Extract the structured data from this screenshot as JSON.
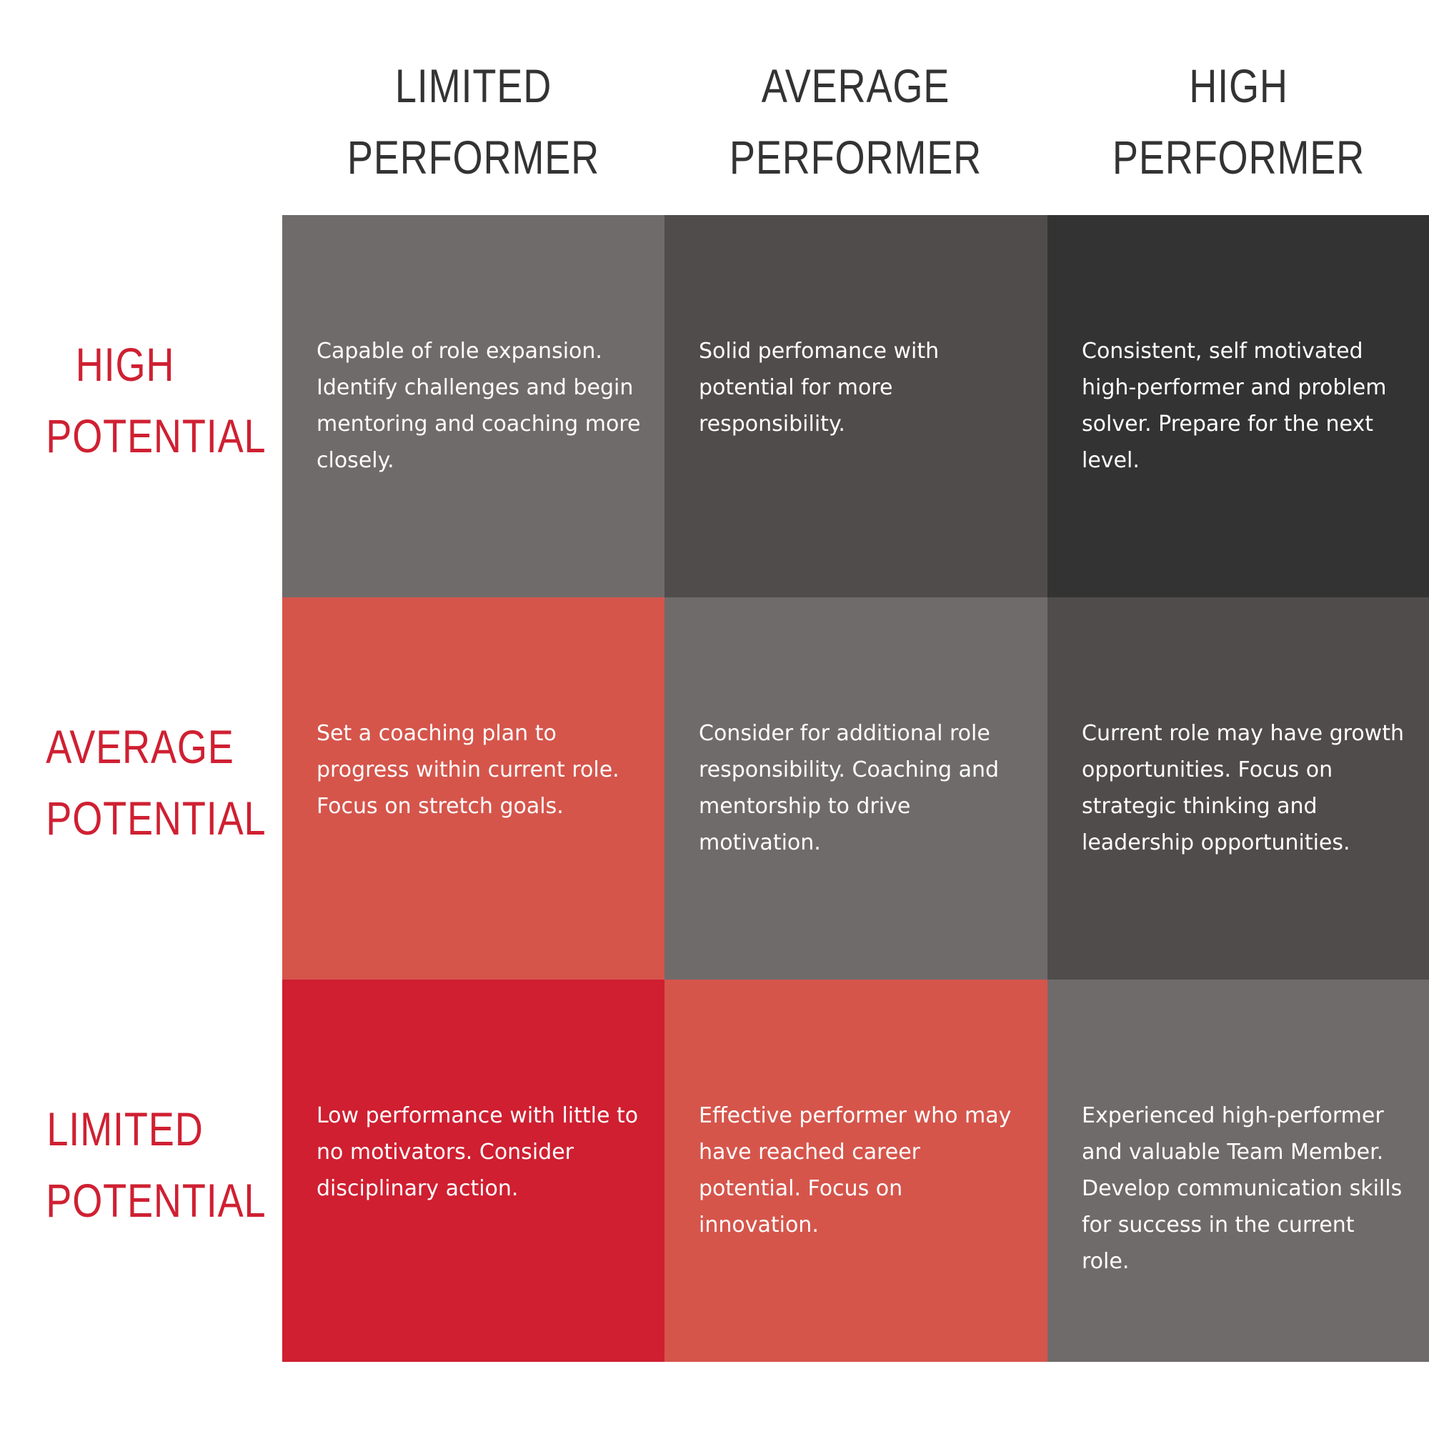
{
  "columns": [
    {
      "line1": "LIMITED",
      "line2": "PERFORMER"
    },
    {
      "line1": "AVERAGE",
      "line2": "PERFORMER"
    },
    {
      "line1": "HIGH",
      "line2": "PERFORMER"
    }
  ],
  "rows": [
    {
      "line1": "HIGH",
      "line2": "POTENTIAL"
    },
    {
      "line1": "AVERAGE",
      "line2": "POTENTIAL"
    },
    {
      "line1": "LIMITED",
      "line2": "POTENTIAL"
    }
  ],
  "cells": [
    [
      {
        "text": "Capable of role expansion. Identify challenges and begin mentoring and coaching more closely.",
        "color": "#706b6b"
      },
      {
        "text": "Solid perfomance with potential for more responsibility.",
        "color": "#504c4b"
      },
      {
        "text": "Consistent, self motivated high-performer and problem solver. Prepare for the next level.",
        "color": "#333333"
      }
    ],
    [
      {
        "text": "Set a coaching plan to progress within current role. Focus on stretch goals.",
        "color": "#d5554b"
      },
      {
        "text": "Consider for additional role responsibility. Coaching and mentorship to drive motivation.",
        "color": "#706b6b"
      },
      {
        "text": "Current role may have growth opportunities. Focus on strategic thinking and leadership opportunities.",
        "color": "#504c4b"
      }
    ],
    [
      {
        "text": "Low performance with little to no motivators. Consider disciplinary action.",
        "color": "#cf1f31"
      },
      {
        "text": "Effective performer who may have reached career potential. Focus on innovation.",
        "color": "#d5554b"
      },
      {
        "text": "Experienced high-performer and valuable Team Member. Develop communication skills for success in the current role.",
        "color": "#706b6b"
      }
    ]
  ],
  "colors": {
    "row_label": "#cf2032",
    "column_label": "#333333"
  }
}
